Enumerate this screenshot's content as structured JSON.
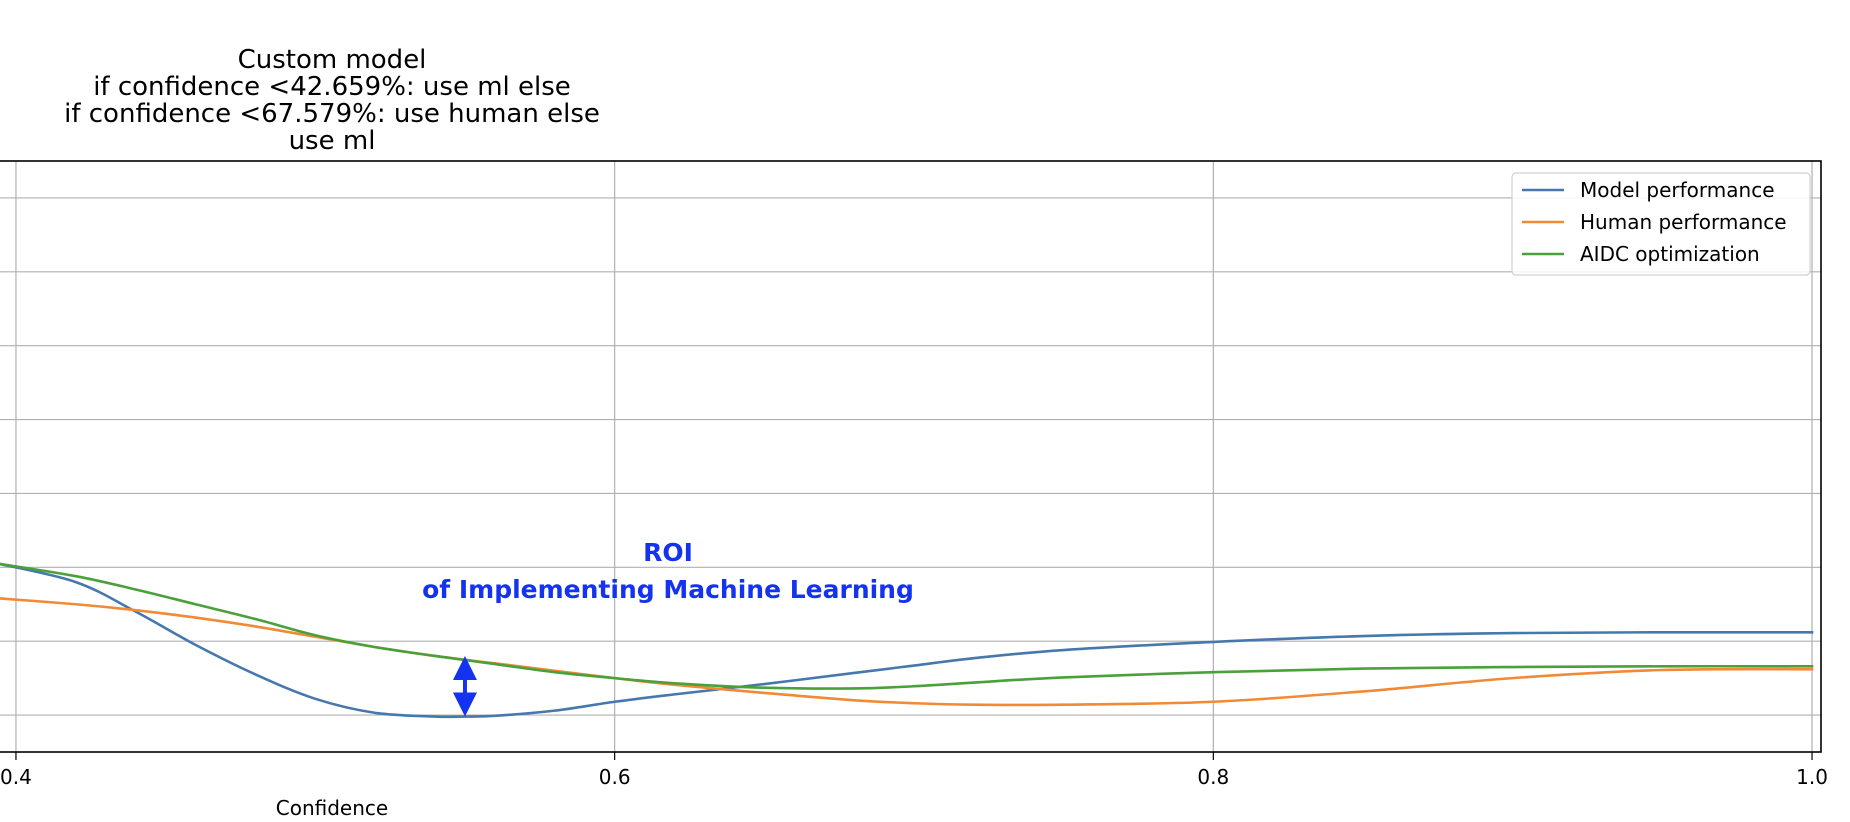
{
  "chart_data": {
    "type": "line",
    "title_lines": [
      "Custom model",
      "if confidence <42.659%: use ml else",
      "if confidence <67.579%: use human else",
      "use ml"
    ],
    "xlabel": "Confidence",
    "ylabel": "",
    "xlim": [
      0.394,
      1.003
    ],
    "ylim": [
      0,
      8
    ],
    "xticks": [
      0.4,
      0.6,
      0.8,
      1.0
    ],
    "xtick_labels": [
      "0.4",
      "0.6",
      "0.8",
      "1.0"
    ],
    "yticks": [
      0.5,
      1.5,
      2.5,
      3.5,
      4.5,
      5.5,
      6.5,
      7.5
    ],
    "grid": true,
    "legend_position": "upper right",
    "series": [
      {
        "name": "Model performance",
        "color": "#4678ad",
        "x": [
          0.394,
          0.42,
          0.44,
          0.46,
          0.48,
          0.5,
          0.52,
          0.54,
          0.55,
          0.56,
          0.58,
          0.6,
          0.62,
          0.65,
          0.68,
          0.7,
          0.72,
          0.75,
          0.8,
          0.85,
          0.9,
          0.95,
          1.0
        ],
        "y": [
          2.55,
          2.3,
          1.9,
          1.45,
          1.05,
          0.72,
          0.53,
          0.48,
          0.48,
          0.49,
          0.56,
          0.68,
          0.78,
          0.92,
          1.07,
          1.17,
          1.27,
          1.38,
          1.49,
          1.57,
          1.61,
          1.62,
          1.62
        ]
      },
      {
        "name": "Human performance",
        "color": "#f08a37",
        "x": [
          0.394,
          0.42,
          0.44,
          0.46,
          0.48,
          0.5,
          0.52,
          0.54,
          0.56,
          0.58,
          0.6,
          0.62,
          0.65,
          0.68,
          0.7,
          0.72,
          0.75,
          0.8,
          0.85,
          0.9,
          0.95,
          1.0
        ],
        "y": [
          2.08,
          2.0,
          1.92,
          1.82,
          1.7,
          1.56,
          1.42,
          1.3,
          1.2,
          1.1,
          1.0,
          0.91,
          0.8,
          0.7,
          0.66,
          0.64,
          0.64,
          0.68,
          0.82,
          1.0,
          1.11,
          1.12
        ]
      },
      {
        "name": "AIDC optimization",
        "color": "#4aa03a",
        "x": [
          0.394,
          0.42,
          0.44,
          0.46,
          0.48,
          0.5,
          0.52,
          0.54,
          0.56,
          0.58,
          0.6,
          0.62,
          0.65,
          0.68,
          0.7,
          0.72,
          0.75,
          0.8,
          0.85,
          0.9,
          0.95,
          1.0
        ],
        "y": [
          2.55,
          2.38,
          2.2,
          2.0,
          1.8,
          1.58,
          1.42,
          1.3,
          1.19,
          1.08,
          1.0,
          0.93,
          0.87,
          0.86,
          0.89,
          0.94,
          1.01,
          1.08,
          1.13,
          1.15,
          1.16,
          1.16
        ]
      }
    ],
    "annotation": {
      "lines": [
        "ROI",
        "of Implementing Machine Learning"
      ],
      "color": "#1433f0",
      "arrow_x": 0.55,
      "arrow_y_top": 1.3,
      "arrow_y_bottom": 0.48
    }
  }
}
